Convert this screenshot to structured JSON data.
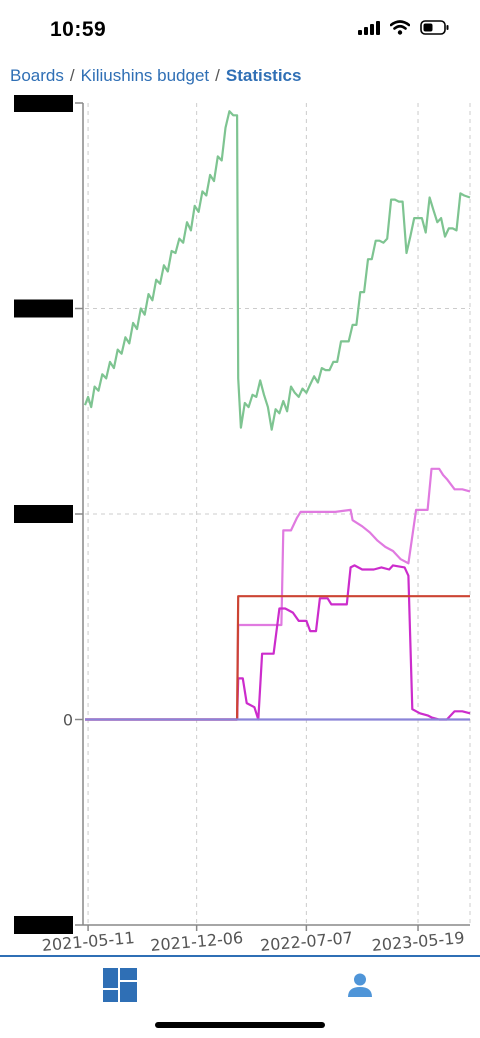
{
  "status_bar": {
    "time": "10:59"
  },
  "breadcrumb": {
    "boards": "Boards",
    "separator": "/",
    "board_name": "Kiliushins budget",
    "current": "Statistics"
  },
  "chart_data": {
    "type": "line",
    "xlabel": "",
    "ylabel": "",
    "x_tick_labels": [
      "2021-05-11",
      "2021-12-06",
      "2022-07-07",
      "2023-05-19"
    ],
    "y_tick_labels": [
      "",
      "",
      "",
      "0",
      ""
    ],
    "y_tick_values": [
      3,
      2,
      1,
      0,
      -1
    ],
    "y_tick_labels_redacted": true,
    "xlim": [
      0,
      1
    ],
    "ylim": [
      -1.0,
      3.0
    ],
    "grid": true,
    "colors": {
      "green": "#7ec491",
      "light_magenta": "#e07ae0",
      "magenta": "#cc2ccc",
      "red": "#cc4433",
      "purple": "#8a84d8",
      "axis": "#888888",
      "grid": "#cccccc"
    },
    "series": [
      {
        "color": "#7ec491",
        "points": [
          [
            0.0,
            1.53
          ],
          [
            0.008,
            1.57
          ],
          [
            0.016,
            1.52
          ],
          [
            0.025,
            1.62
          ],
          [
            0.035,
            1.6
          ],
          [
            0.045,
            1.68
          ],
          [
            0.055,
            1.66
          ],
          [
            0.065,
            1.74
          ],
          [
            0.075,
            1.71
          ],
          [
            0.085,
            1.8
          ],
          [
            0.095,
            1.78
          ],
          [
            0.105,
            1.86
          ],
          [
            0.115,
            1.83
          ],
          [
            0.125,
            1.93
          ],
          [
            0.135,
            1.9
          ],
          [
            0.145,
            2.0
          ],
          [
            0.155,
            1.97
          ],
          [
            0.165,
            2.07
          ],
          [
            0.175,
            2.04
          ],
          [
            0.185,
            2.14
          ],
          [
            0.195,
            2.12
          ],
          [
            0.205,
            2.21
          ],
          [
            0.215,
            2.18
          ],
          [
            0.225,
            2.28
          ],
          [
            0.235,
            2.27
          ],
          [
            0.245,
            2.34
          ],
          [
            0.255,
            2.32
          ],
          [
            0.265,
            2.42
          ],
          [
            0.275,
            2.38
          ],
          [
            0.285,
            2.5
          ],
          [
            0.295,
            2.47
          ],
          [
            0.305,
            2.57
          ],
          [
            0.315,
            2.55
          ],
          [
            0.325,
            2.65
          ],
          [
            0.335,
            2.62
          ],
          [
            0.345,
            2.74
          ],
          [
            0.355,
            2.72
          ],
          [
            0.365,
            2.88
          ],
          [
            0.375,
            2.96
          ],
          [
            0.385,
            2.94
          ],
          [
            0.395,
            2.94
          ],
          [
            0.398,
            1.66
          ],
          [
            0.405,
            1.42
          ],
          [
            0.415,
            1.54
          ],
          [
            0.425,
            1.52
          ],
          [
            0.435,
            1.58
          ],
          [
            0.445,
            1.57
          ],
          [
            0.455,
            1.65
          ],
          [
            0.465,
            1.58
          ],
          [
            0.475,
            1.52
          ],
          [
            0.485,
            1.41
          ],
          [
            0.495,
            1.51
          ],
          [
            0.505,
            1.49
          ],
          [
            0.515,
            1.55
          ],
          [
            0.525,
            1.5
          ],
          [
            0.535,
            1.62
          ],
          [
            0.545,
            1.59
          ],
          [
            0.555,
            1.57
          ],
          [
            0.565,
            1.61
          ],
          [
            0.575,
            1.59
          ],
          [
            0.585,
            1.63
          ],
          [
            0.595,
            1.67
          ],
          [
            0.605,
            1.64
          ],
          [
            0.615,
            1.71
          ],
          [
            0.625,
            1.7
          ],
          [
            0.635,
            1.7
          ],
          [
            0.645,
            1.74
          ],
          [
            0.655,
            1.74
          ],
          [
            0.665,
            1.84
          ],
          [
            0.675,
            1.84
          ],
          [
            0.685,
            1.84
          ],
          [
            0.695,
            1.92
          ],
          [
            0.705,
            1.92
          ],
          [
            0.715,
            2.08
          ],
          [
            0.725,
            2.08
          ],
          [
            0.735,
            2.24
          ],
          [
            0.745,
            2.24
          ],
          [
            0.755,
            2.33
          ],
          [
            0.765,
            2.33
          ],
          [
            0.775,
            2.32
          ],
          [
            0.785,
            2.34
          ],
          [
            0.795,
            2.53
          ],
          [
            0.805,
            2.53
          ],
          [
            0.815,
            2.52
          ],
          [
            0.825,
            2.52
          ],
          [
            0.835,
            2.27
          ],
          [
            0.845,
            2.35
          ],
          [
            0.855,
            2.44
          ],
          [
            0.865,
            2.44
          ],
          [
            0.875,
            2.44
          ],
          [
            0.885,
            2.37
          ],
          [
            0.895,
            2.54
          ],
          [
            0.905,
            2.48
          ],
          [
            0.915,
            2.42
          ],
          [
            0.925,
            2.44
          ],
          [
            0.935,
            2.35
          ],
          [
            0.945,
            2.39
          ],
          [
            0.955,
            2.39
          ],
          [
            0.965,
            2.38
          ],
          [
            0.975,
            2.56
          ],
          [
            0.985,
            2.55
          ],
          [
            1.0,
            2.54
          ]
        ]
      },
      {
        "color": "#e07ae0",
        "points": [
          [
            0.0,
            0.0
          ],
          [
            0.395,
            0.0
          ],
          [
            0.398,
            0.46
          ],
          [
            0.405,
            0.46
          ],
          [
            0.44,
            0.46
          ],
          [
            0.51,
            0.46
          ],
          [
            0.515,
            0.92
          ],
          [
            0.535,
            0.92
          ],
          [
            0.55,
            0.98
          ],
          [
            0.56,
            1.01
          ],
          [
            0.6,
            1.01
          ],
          [
            0.65,
            1.01
          ],
          [
            0.69,
            1.02
          ],
          [
            0.695,
            0.97
          ],
          [
            0.72,
            0.94
          ],
          [
            0.74,
            0.91
          ],
          [
            0.76,
            0.87
          ],
          [
            0.78,
            0.84
          ],
          [
            0.8,
            0.82
          ],
          [
            0.82,
            0.78
          ],
          [
            0.84,
            0.76
          ],
          [
            0.86,
            1.02
          ],
          [
            0.89,
            1.02
          ],
          [
            0.9,
            1.22
          ],
          [
            0.92,
            1.22
          ],
          [
            0.93,
            1.19
          ],
          [
            0.94,
            1.17
          ],
          [
            0.96,
            1.12
          ],
          [
            0.98,
            1.12
          ],
          [
            1.0,
            1.11
          ]
        ]
      },
      {
        "color": "#cc2ccc",
        "points": [
          [
            0.0,
            0.0
          ],
          [
            0.395,
            0.0
          ],
          [
            0.398,
            0.2
          ],
          [
            0.41,
            0.2
          ],
          [
            0.42,
            0.08
          ],
          [
            0.44,
            0.06
          ],
          [
            0.45,
            0.0
          ],
          [
            0.46,
            0.32
          ],
          [
            0.49,
            0.32
          ],
          [
            0.505,
            0.54
          ],
          [
            0.52,
            0.54
          ],
          [
            0.54,
            0.52
          ],
          [
            0.555,
            0.48
          ],
          [
            0.575,
            0.48
          ],
          [
            0.585,
            0.43
          ],
          [
            0.6,
            0.43
          ],
          [
            0.61,
            0.59
          ],
          [
            0.63,
            0.59
          ],
          [
            0.64,
            0.56
          ],
          [
            0.65,
            0.56
          ],
          [
            0.68,
            0.56
          ],
          [
            0.69,
            0.74
          ],
          [
            0.7,
            0.75
          ],
          [
            0.72,
            0.73
          ],
          [
            0.75,
            0.73
          ],
          [
            0.77,
            0.74
          ],
          [
            0.79,
            0.73
          ],
          [
            0.8,
            0.75
          ],
          [
            0.83,
            0.74
          ],
          [
            0.84,
            0.7
          ],
          [
            0.85,
            0.05
          ],
          [
            0.87,
            0.03
          ],
          [
            0.89,
            0.02
          ],
          [
            0.9,
            0.01
          ],
          [
            0.92,
            0.0
          ],
          [
            0.94,
            0.0
          ],
          [
            0.96,
            0.04
          ],
          [
            0.98,
            0.04
          ],
          [
            1.0,
            0.03
          ]
        ]
      },
      {
        "color": "#cc4433",
        "points": [
          [
            0.0,
            0.0
          ],
          [
            0.395,
            0.0
          ],
          [
            0.398,
            0.6
          ],
          [
            1.0,
            0.6
          ]
        ]
      },
      {
        "color": "#8a84d8",
        "points": [
          [
            0.0,
            0.0
          ],
          [
            1.0,
            0.0
          ]
        ]
      }
    ]
  },
  "bottom_nav": {
    "items": [
      {
        "icon": "dashboard-icon"
      },
      {
        "icon": "user-icon"
      }
    ],
    "color": "#2f6fb5"
  }
}
